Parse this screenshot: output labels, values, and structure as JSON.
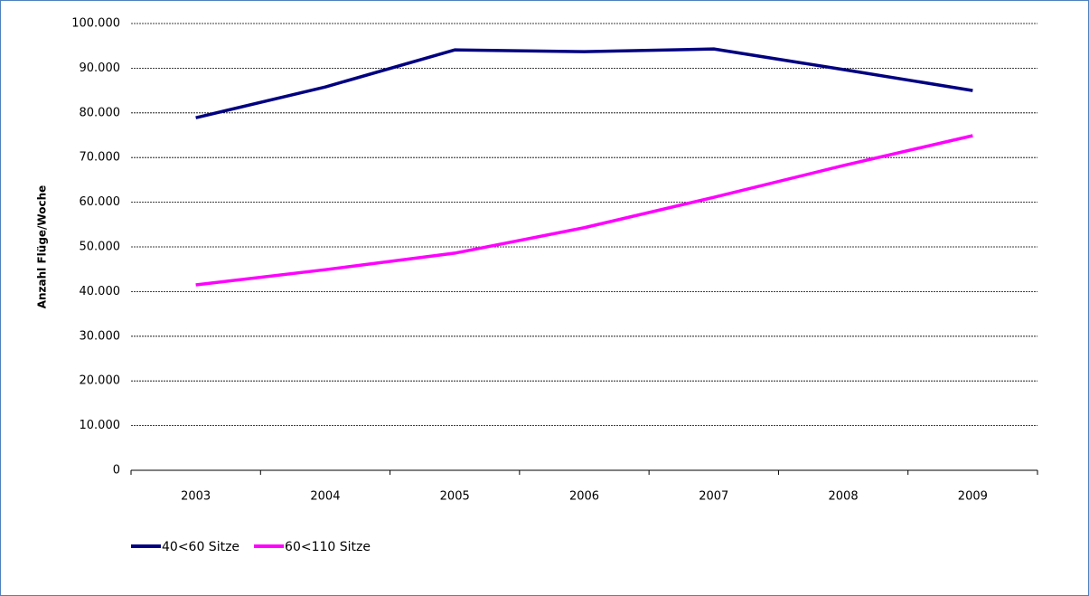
{
  "chart_data": {
    "type": "line",
    "y_label": "Anzahl Flüge/Woche",
    "categories": [
      "2003",
      "2004",
      "2005",
      "2006",
      "2007",
      "2008",
      "2009"
    ],
    "series": [
      {
        "name": "40<60 Sitze",
        "color": "#000080",
        "values": [
          78900,
          85800,
          94100,
          93700,
          94300,
          89700,
          85000
        ]
      },
      {
        "name": "60<110 Sitze",
        "color": "#ff00ff",
        "values": [
          41500,
          44900,
          48600,
          54300,
          61100,
          68200,
          74900
        ]
      }
    ],
    "ylim": [
      0,
      100000
    ],
    "yticks": [
      0,
      {
        "value": 10000,
        "label": "10.000"
      },
      {
        "value": 20000,
        "label": "20.000"
      },
      {
        "value": 30000,
        "label": "30.000"
      },
      {
        "value": 40000,
        "label": "40.000"
      },
      {
        "value": 50000,
        "label": "50.000"
      },
      {
        "value": 60000,
        "label": "60.000"
      },
      {
        "value": 70000,
        "label": "70.000"
      },
      {
        "value": 80000,
        "label": "80.000"
      },
      {
        "value": 90000,
        "label": "90.000"
      },
      {
        "value": 100000,
        "label": "100.000"
      }
    ],
    "grid": true,
    "legend": "bottom"
  }
}
